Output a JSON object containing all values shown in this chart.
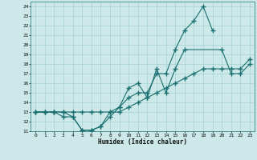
{
  "xlabel": "Humidex (Indice chaleur)",
  "background_color": "#cce8e8",
  "line_color": "#1a7070",
  "xlim": [
    -0.5,
    23.5
  ],
  "ylim": [
    11,
    24.5
  ],
  "yticks": [
    11,
    12,
    13,
    14,
    15,
    16,
    17,
    18,
    19,
    20,
    21,
    22,
    23,
    24
  ],
  "xticks": [
    0,
    1,
    2,
    3,
    4,
    5,
    6,
    7,
    8,
    9,
    10,
    11,
    12,
    13,
    14,
    15,
    16,
    17,
    18,
    19,
    20,
    21,
    22,
    23
  ],
  "line1_x": [
    0,
    1,
    2,
    3,
    4,
    5,
    6,
    7,
    8,
    9,
    10,
    11,
    12,
    13,
    14,
    15,
    16,
    17,
    18,
    19
  ],
  "line1_y": [
    13,
    13,
    13,
    13,
    12.5,
    11.1,
    11.1,
    11.5,
    13.0,
    13.5,
    14.5,
    15.0,
    15.0,
    17.0,
    17.0,
    19.5,
    21.5,
    22.5,
    24.0,
    21.5
  ],
  "line2_x": [
    0,
    1,
    2,
    3,
    4,
    5,
    6,
    7,
    8,
    9,
    10,
    11,
    12,
    13,
    14,
    15,
    16,
    17,
    18,
    19,
    20,
    21,
    22,
    23
  ],
  "line2_y": [
    13,
    13,
    13,
    13,
    13,
    13,
    13,
    13,
    13,
    13,
    13.5,
    14.0,
    14.5,
    15.0,
    15.5,
    16.0,
    16.5,
    17.0,
    17.5,
    17.5,
    17.5,
    17.5,
    17.5,
    18.5
  ],
  "line3_x": [
    0,
    1,
    2,
    3,
    4,
    5,
    6,
    7,
    8,
    9,
    10,
    11,
    12,
    13,
    14,
    15,
    16,
    20,
    21,
    22,
    23
  ],
  "line3_y": [
    13,
    13,
    13,
    12.5,
    12.5,
    11.1,
    11.1,
    11.5,
    12.5,
    13.5,
    15.5,
    16.0,
    14.5,
    17.5,
    15.0,
    17.5,
    19.5,
    19.5,
    17.0,
    17.0,
    18.0
  ]
}
